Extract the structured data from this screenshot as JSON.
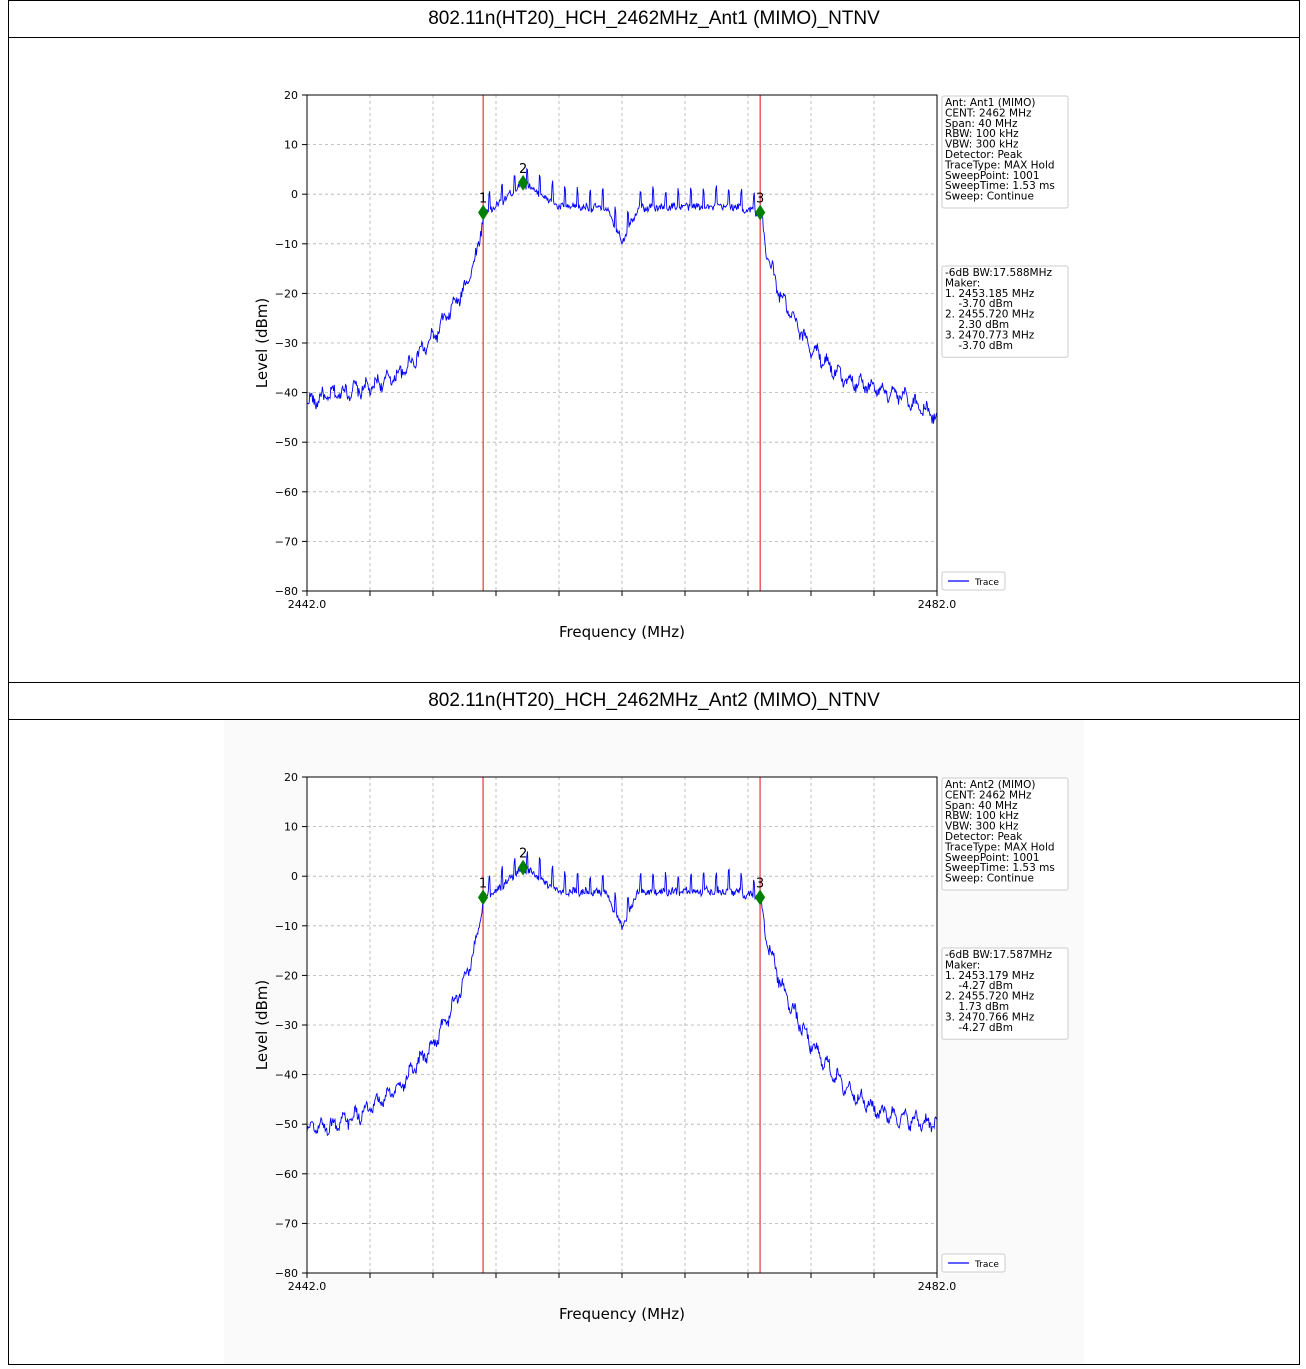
{
  "report": {
    "sections": [
      {
        "title": "802.11n(HT20)_HCH_2462MHz_Ant1 (MIMO)_NTNV",
        "info_box": [
          "Ant: Ant1 (MIMO)",
          "CENT: 2462 MHz",
          "Span: 40 MHz",
          "RBW: 100 kHz",
          "VBW: 300 kHz",
          "Detector: Peak",
          "TraceType: MAX Hold",
          "SweepPoint: 1001",
          "SweepTime: 1.53 ms",
          "Sweep: Continue"
        ],
        "result_box": [
          "-6dB BW:17.588MHz",
          "Maker:",
          "1. 2453.185 MHz",
          "    -3.70 dBm",
          "2. 2455.720 MHz",
          "    2.30 dBm",
          "3. 2470.773 MHz",
          "    -3.70 dBm"
        ]
      },
      {
        "title": "802.11n(HT20)_HCH_2462MHz_Ant2 (MIMO)_NTNV",
        "info_box": [
          "Ant: Ant2 (MIMO)",
          "CENT: 2462 MHz",
          "Span: 40 MHz",
          "RBW: 100 kHz",
          "VBW: 300 kHz",
          "Detector: Peak",
          "TraceType: MAX Hold",
          "SweepPoint: 1001",
          "SweepTime: 1.53 ms",
          "Sweep: Continue"
        ],
        "result_box": [
          "-6dB BW:17.587MHz",
          "Maker:",
          "1. 2453.179 MHz",
          "    -4.27 dBm",
          "2. 2455.720 MHz",
          "    1.73 dBm",
          "3. 2470.766 MHz",
          "    -4.27 dBm"
        ]
      }
    ]
  },
  "colors": {
    "trace": "#0000ff",
    "marker": "#008000",
    "vline": "#e8343a",
    "grid": "#b0b0b0"
  },
  "chart_data": [
    {
      "type": "line",
      "xlabel": "Frequency (MHz)",
      "ylabel": "Level (dBm)",
      "xlim": [
        2442.0,
        2482.0
      ],
      "ylim": [
        -80,
        20
      ],
      "x_tick_labels": [
        "2442.0",
        "2482.0"
      ],
      "y_ticks": [
        20,
        10,
        0,
        -10,
        -20,
        -30,
        -40,
        -50,
        -60,
        -70,
        -80
      ],
      "grid": true,
      "legend": {
        "entries": [
          "Trace"
        ],
        "position": "lower-right outside"
      },
      "series": [
        {
          "name": "Trace",
          "x": [
            2442.0,
            2444.0,
            2446.0,
            2448.0,
            2450.0,
            2451.0,
            2452.0,
            2452.8,
            2453.185,
            2454.0,
            2455.72,
            2458.0,
            2461.0,
            2462.0,
            2463.0,
            2466.0,
            2469.0,
            2470.773,
            2471.2,
            2472.0,
            2473.0,
            2474.0,
            2476.0,
            2478.0,
            2480.0,
            2482.0
          ],
          "y": [
            -42,
            -40,
            -39,
            -36,
            -29,
            -24,
            -19,
            -12,
            -3.7,
            -2.5,
            2.3,
            -2.5,
            -2.8,
            -9.5,
            -2.8,
            -2.5,
            -2.5,
            -3.7,
            -12,
            -20,
            -26,
            -31,
            -37,
            -39,
            -41,
            -45
          ]
        }
      ],
      "markers": [
        {
          "label": "1",
          "x": 2453.185,
          "y": -3.7
        },
        {
          "label": "2",
          "x": 2455.72,
          "y": 2.3
        },
        {
          "label": "3",
          "x": 2470.773,
          "y": -3.7
        }
      ],
      "vlines": [
        2453.185,
        2470.773
      ]
    },
    {
      "type": "line",
      "xlabel": "Frequency (MHz)",
      "ylabel": "Level (dBm)",
      "xlim": [
        2442.0,
        2482.0
      ],
      "ylim": [
        -80,
        20
      ],
      "x_tick_labels": [
        "2442.0",
        "2482.0"
      ],
      "y_ticks": [
        20,
        10,
        0,
        -10,
        -20,
        -30,
        -40,
        -50,
        -60,
        -70,
        -80
      ],
      "grid": true,
      "legend": {
        "entries": [
          "Trace"
        ],
        "position": "lower-right outside"
      },
      "series": [
        {
          "name": "Trace",
          "x": [
            2442.0,
            2444.0,
            2446.0,
            2448.0,
            2450.0,
            2451.0,
            2452.0,
            2452.8,
            2453.179,
            2454.0,
            2455.72,
            2458.0,
            2461.0,
            2462.0,
            2463.0,
            2466.0,
            2469.0,
            2470.766,
            2471.2,
            2472.0,
            2473.0,
            2474.0,
            2476.0,
            2478.0,
            2480.0,
            2482.0
          ],
          "y": [
            -51,
            -50,
            -47,
            -42,
            -34,
            -28,
            -21,
            -13,
            -4.27,
            -3.0,
            1.73,
            -3.0,
            -3.2,
            -10.5,
            -3.2,
            -3.0,
            -3.0,
            -4.27,
            -13,
            -21,
            -28,
            -34,
            -42,
            -47,
            -49,
            -50
          ]
        }
      ],
      "markers": [
        {
          "label": "1",
          "x": 2453.179,
          "y": -4.27
        },
        {
          "label": "2",
          "x": 2455.72,
          "y": 1.73
        },
        {
          "label": "3",
          "x": 2470.766,
          "y": -4.27
        }
      ],
      "vlines": [
        2453.179,
        2470.766
      ]
    }
  ]
}
